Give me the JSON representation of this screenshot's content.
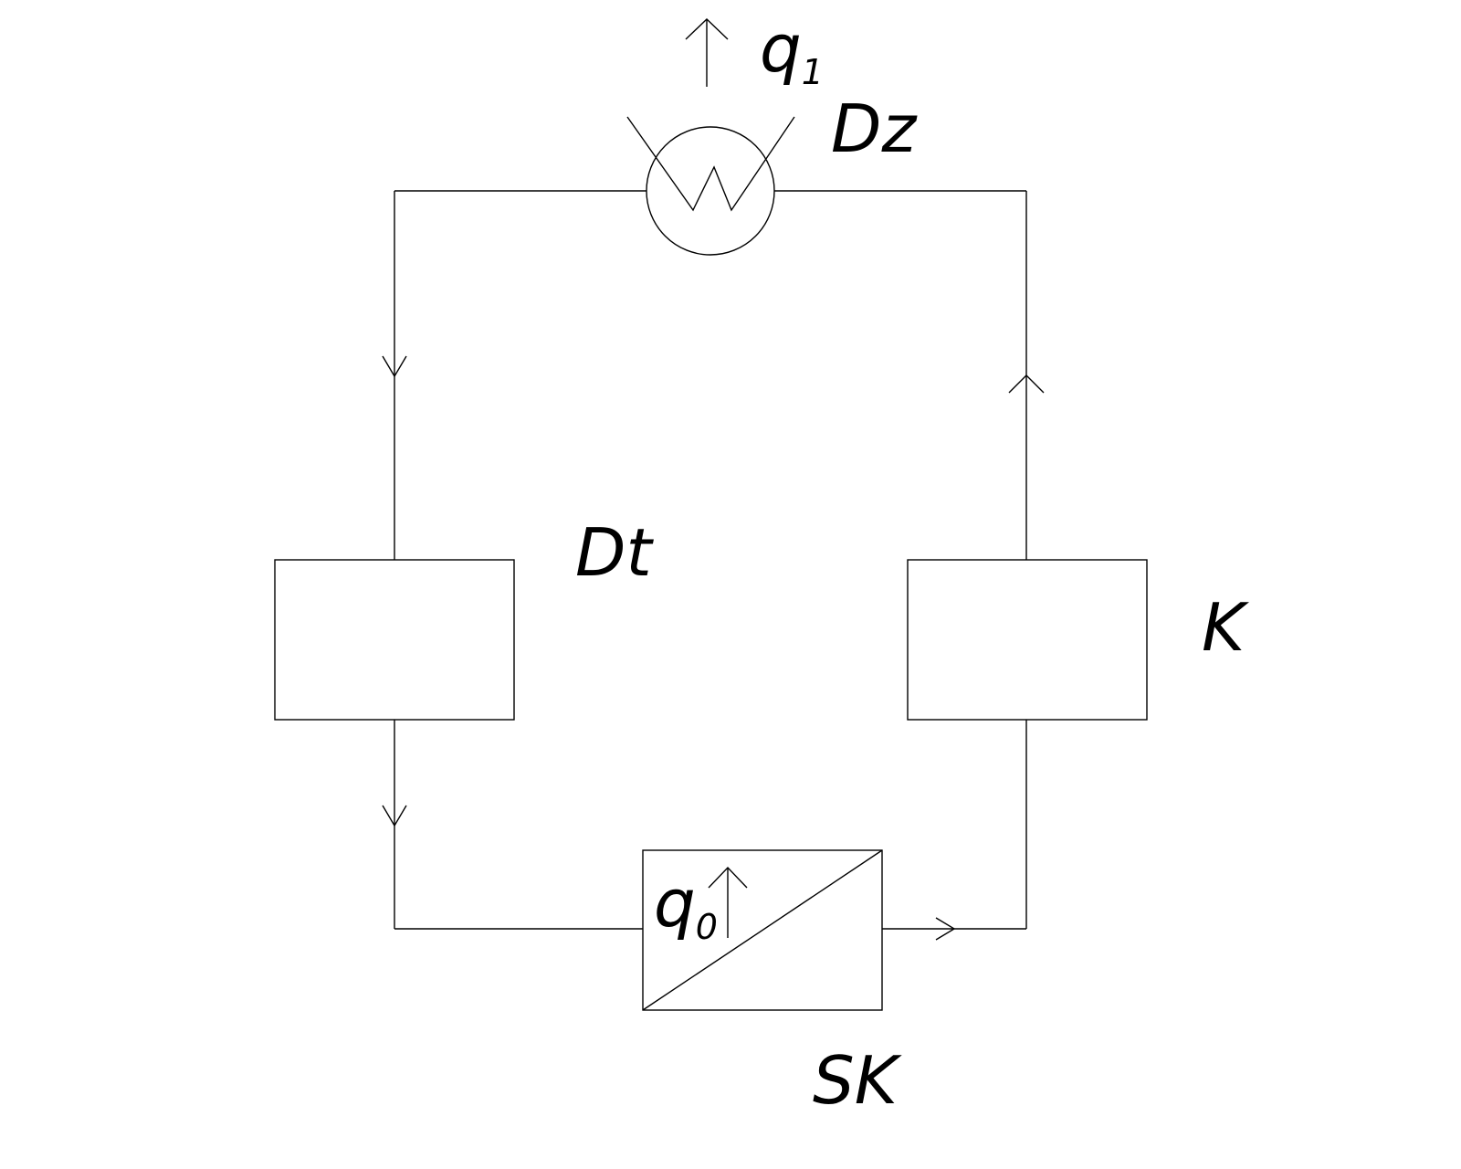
{
  "labels": {
    "heat_out": {
      "symbol": "q",
      "subscript": "1"
    },
    "heat_in": {
      "symbol": "q",
      "subscript": "0"
    },
    "throttle": "Dz",
    "expander": "Dt",
    "compressor": "K",
    "cooler": "SK"
  },
  "colors": {
    "stroke": "#000000",
    "background": "#ffffff"
  }
}
